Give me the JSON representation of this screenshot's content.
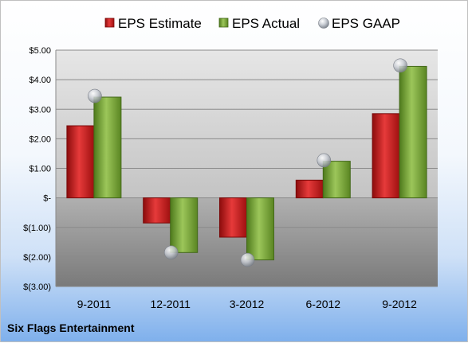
{
  "chart_data": {
    "type": "bar",
    "title": "",
    "xlabel": "",
    "ylabel": "",
    "company": "Six Flags Entertainment",
    "categories": [
      "9-2011",
      "12-2011",
      "3-2012",
      "6-2012",
      "9-2012"
    ],
    "series": [
      {
        "name": "EPS Estimate",
        "kind": "bar",
        "color": "#d42020",
        "values": [
          2.44,
          -0.85,
          -1.33,
          0.6,
          2.85
        ]
      },
      {
        "name": "EPS Actual",
        "kind": "bar",
        "color": "#7fa83a",
        "values": [
          3.41,
          -1.85,
          -2.1,
          1.24,
          4.45
        ]
      },
      {
        "name": "EPS GAAP",
        "kind": "marker",
        "color": "#b8bec8",
        "values": [
          3.45,
          -1.85,
          -2.1,
          1.27,
          4.48
        ]
      }
    ],
    "ylim": [
      -3,
      5
    ],
    "yticks": [
      {
        "value": 5,
        "label": "$5.00"
      },
      {
        "value": 4,
        "label": "$4.00"
      },
      {
        "value": 3,
        "label": "$3.00"
      },
      {
        "value": 2,
        "label": "$2.00"
      },
      {
        "value": 1,
        "label": "$1.00"
      },
      {
        "value": 0,
        "label": "$-"
      },
      {
        "value": -1,
        "label": "$(1.00)"
      },
      {
        "value": -2,
        "label": "$(2.00)"
      },
      {
        "value": -3,
        "label": "$(3.00)"
      }
    ],
    "grid": true,
    "legend_position": "top"
  }
}
